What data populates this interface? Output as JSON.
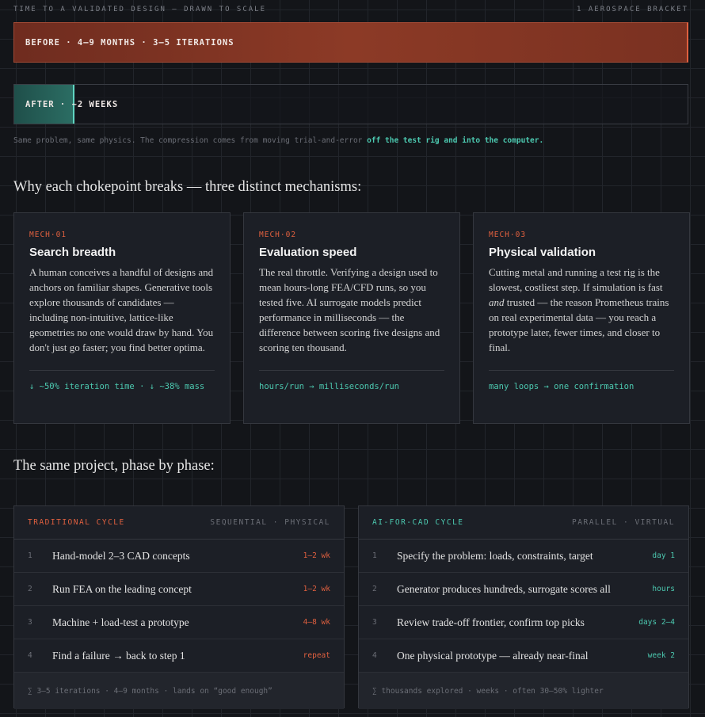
{
  "header": {
    "title": "TIME TO A VALIDATED DESIGN — DRAWN TO SCALE",
    "right": "1 AEROSPACE BRACKET"
  },
  "bars": {
    "before": "BEFORE · 4–9 MONTHS · 3–5 ITERATIONS",
    "after": "AFTER · ~2 WEEKS"
  },
  "caption": {
    "text": "Same problem, same physics. The compression comes from moving trial-and-error ",
    "highlight": "off the test rig and into the computer."
  },
  "mechanisms": {
    "heading": "Why each chokepoint breaks — three distinct mechanisms:",
    "cards": [
      {
        "tag": "MECH·01",
        "title": "Search breadth",
        "body": [
          "A human conceives a handful of designs and anchors on familiar shapes. Generative tools explore thousands of candidates — including non-intuitive, lattice-like geometries no one would draw by hand. You don't just go faster; you find better optima."
        ],
        "metric": "↓ ~50% iteration time · ↓ ~38% mass"
      },
      {
        "tag": "MECH·02",
        "title": "Evaluation speed",
        "body": [
          "The real throttle. Verifying a design used to mean hours-long FEA/CFD runs, so you tested five. AI surrogate models predict performance in milliseconds — the difference between scoring five designs and scoring ten thousand."
        ],
        "metric": "hours/run → milliseconds/run"
      },
      {
        "tag": "MECH·03",
        "title": "Physical validation",
        "body": [
          "Cutting metal and running a test rig is the slowest, costliest step. If simulation is fast ",
          "and",
          " trusted — the reason Prometheus trains on real experimental data — you reach a prototype later, fewer times, and closer to final."
        ],
        "metric": "many loops → one confirmation"
      }
    ]
  },
  "phases": {
    "heading": "The same project, phase by phase:",
    "columns": [
      {
        "title": "TRADITIONAL CYCLE",
        "subtitle": "SEQUENTIAL · PHYSICAL",
        "steps": [
          {
            "num": "1",
            "text": "Hand-model 2–3 CAD concepts",
            "time": "1–2 wk"
          },
          {
            "num": "2",
            "text": "Run FEA on the leading concept",
            "time": "1–2 wk"
          },
          {
            "num": "3",
            "text": "Machine + load-test a prototype",
            "time": "4–8 wk"
          },
          {
            "num": "4",
            "text": "Find a failure → back to step 1",
            "time": "repeat"
          }
        ],
        "footer": "∑ 3–5 iterations · 4–9 months · lands on “good enough”"
      },
      {
        "title": "AI-FOR-CAD CYCLE",
        "subtitle": "PARALLEL · VIRTUAL",
        "steps": [
          {
            "num": "1",
            "text": "Specify the problem: loads, constraints, target",
            "time": "day 1"
          },
          {
            "num": "2",
            "text": "Generator produces hundreds, surrogate scores all",
            "time": "hours"
          },
          {
            "num": "3",
            "text": "Review trade-off frontier, confirm top picks",
            "time": "days 2–4"
          },
          {
            "num": "4",
            "text": "One physical prototype — already near-final",
            "time": "week 2"
          }
        ],
        "footer": "∑ thousands explored · weeks · often 30–50% lighter"
      }
    ]
  }
}
